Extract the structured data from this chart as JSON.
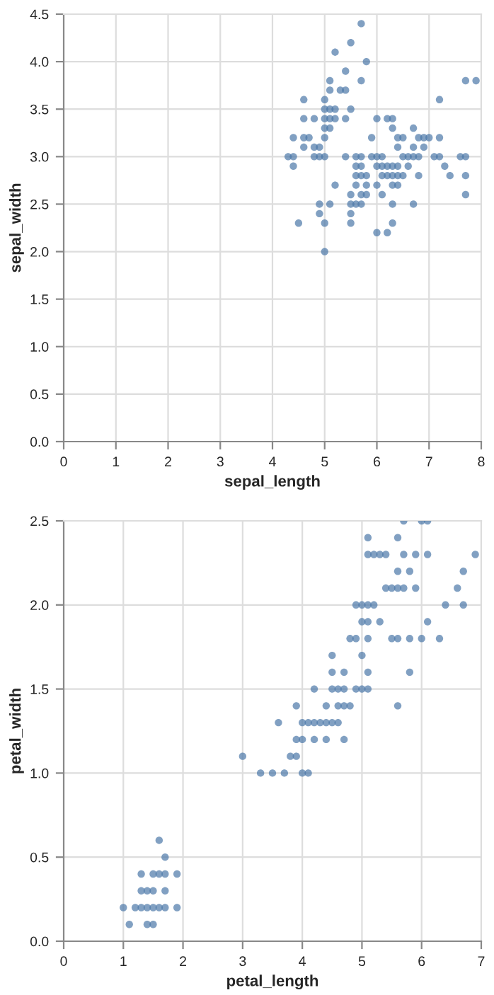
{
  "chart_data": [
    {
      "type": "scatter",
      "xlabel": "sepal_length",
      "ylabel": "sepal_width",
      "color": "#4c78a8",
      "marker": "circle",
      "grid": true,
      "xlim": [
        0,
        8
      ],
      "xticks": [
        0,
        1,
        2,
        3,
        4,
        5,
        6,
        7,
        8
      ],
      "ylim": [
        0,
        4.5
      ],
      "yticks": [
        {
          "value": 0,
          "label": "0.0"
        },
        {
          "value": 0.5,
          "label": "0.5"
        },
        {
          "value": 1,
          "label": "1.0"
        },
        {
          "value": 1.5,
          "label": "1.5"
        },
        {
          "value": 2,
          "label": "2.0"
        },
        {
          "value": 2.5,
          "label": "2.5"
        },
        {
          "value": 3,
          "label": "3.0"
        },
        {
          "value": 3.5,
          "label": "3.5"
        },
        {
          "value": 4,
          "label": "4.0"
        },
        {
          "value": 4.5,
          "label": "4.5"
        }
      ],
      "x": [
        5.1,
        4.9,
        4.7,
        4.6,
        5.0,
        5.4,
        4.6,
        5.0,
        4.4,
        4.9,
        5.4,
        4.8,
        4.8,
        4.3,
        5.8,
        5.7,
        5.7,
        5.1,
        5.4,
        5.1,
        4.6,
        5.1,
        5.0,
        5.2,
        5.2,
        4.8,
        5.2,
        5.5,
        5.0,
        5.5,
        4.4,
        5.1,
        5.0,
        4.5,
        4.4,
        4.6,
        5.3,
        5.0,
        7.0,
        6.4,
        6.9,
        5.5,
        6.5,
        5.7,
        6.3,
        4.9,
        6.6,
        5.2,
        5.0,
        5.9,
        6.0,
        6.1,
        5.6,
        6.7,
        5.6,
        5.8,
        6.2,
        5.6,
        5.9,
        6.1,
        6.3,
        6.4,
        6.6,
        6.8,
        6.7,
        6.0,
        5.7,
        5.5,
        6.0,
        5.4,
        6.0,
        6.3,
        5.5,
        5.5,
        6.1,
        5.8,
        5.0,
        5.6,
        5.7,
        5.7,
        6.2,
        5.1,
        7.1,
        6.3,
        6.5,
        7.6,
        4.9,
        7.3,
        6.7,
        7.2,
        6.5,
        6.4,
        6.8,
        5.7,
        5.8,
        7.7,
        7.7,
        6.9,
        5.6,
        7.7,
        6.3,
        6.7,
        7.2,
        6.2,
        6.4,
        7.2,
        7.4,
        7.9,
        6.3,
        6.1,
        7.7,
        6.3,
        6.4,
        6.0,
        6.8,
        6.2
      ],
      "values": [
        3.5,
        3.0,
        3.2,
        3.1,
        3.6,
        3.9,
        3.4,
        3.4,
        2.9,
        3.1,
        3.7,
        3.4,
        3.0,
        3.0,
        4.0,
        4.4,
        3.8,
        3.8,
        3.4,
        3.7,
        3.6,
        3.3,
        3.0,
        3.5,
        3.4,
        3.1,
        4.1,
        4.2,
        3.2,
        3.5,
        3.0,
        3.4,
        3.5,
        2.3,
        3.2,
        3.2,
        3.7,
        3.3,
        3.2,
        3.2,
        3.1,
        2.3,
        2.8,
        2.8,
        3.3,
        2.4,
        2.9,
        2.7,
        2.0,
        3.0,
        2.2,
        2.9,
        2.9,
        3.1,
        3.0,
        2.7,
        2.2,
        2.5,
        3.2,
        2.8,
        2.5,
        2.9,
        3.0,
        2.8,
        3.0,
        2.9,
        2.6,
        2.4,
        2.7,
        3.0,
        3.4,
        2.3,
        2.5,
        2.6,
        3.0,
        2.6,
        2.3,
        2.7,
        3.0,
        2.9,
        2.9,
        2.5,
        3.0,
        2.9,
        3.0,
        3.0,
        2.5,
        2.9,
        2.5,
        3.6,
        3.2,
        2.7,
        3.0,
        2.5,
        2.8,
        3.8,
        2.6,
        3.2,
        2.8,
        2.8,
        2.7,
        3.3,
        3.2,
        2.8,
        2.8,
        3.0,
        2.8,
        3.8,
        2.8,
        2.6,
        3.0,
        3.4,
        3.1,
        3.0,
        3.2,
        3.4
      ]
    },
    {
      "type": "scatter",
      "xlabel": "petal_length",
      "ylabel": "petal_width",
      "color": "#4c78a8",
      "marker": "circle",
      "grid": true,
      "xlim": [
        0,
        7
      ],
      "xticks": [
        0,
        1,
        2,
        3,
        4,
        5,
        6,
        7
      ],
      "ylim": [
        0,
        2.5
      ],
      "yticks": [
        {
          "value": 0,
          "label": "0.0"
        },
        {
          "value": 0.5,
          "label": "0.5"
        },
        {
          "value": 1,
          "label": "1.0"
        },
        {
          "value": 1.5,
          "label": "1.5"
        },
        {
          "value": 2,
          "label": "2.0"
        },
        {
          "value": 2.5,
          "label": "2.5"
        }
      ],
      "x": [
        1.4,
        1.3,
        1.5,
        1.7,
        1.4,
        1.5,
        1.6,
        1.4,
        1.1,
        1.2,
        1.5,
        1.3,
        1.7,
        1.5,
        1.7,
        1.0,
        1.7,
        1.9,
        1.6,
        1.3,
        1.6,
        1.9,
        4.7,
        4.5,
        4.9,
        4.0,
        4.6,
        4.5,
        4.7,
        3.3,
        4.6,
        3.9,
        3.5,
        4.2,
        4.0,
        3.6,
        4.4,
        4.1,
        3.9,
        4.8,
        4.7,
        4.3,
        4.8,
        5.0,
        3.8,
        3.7,
        3.9,
        5.1,
        4.5,
        4.7,
        4.4,
        4.1,
        4.4,
        4.6,
        4.0,
        4.2,
        4.2,
        3.0,
        6.0,
        5.1,
        5.9,
        5.6,
        5.8,
        6.6,
        4.5,
        6.3,
        5.8,
        6.1,
        5.1,
        5.3,
        5.5,
        5.0,
        5.1,
        5.3,
        5.5,
        6.7,
        6.9,
        5.0,
        5.7,
        4.9,
        6.7,
        4.9,
        5.7,
        6.0,
        5.6,
        5.8,
        6.1,
        6.4,
        5.6,
        5.1,
        5.6,
        6.1,
        5.6,
        5.4,
        5.1,
        5.9,
        5.7,
        5.2,
        5.0,
        5.2,
        5.4,
        5.1
      ],
      "values": [
        0.2,
        0.2,
        0.2,
        0.4,
        0.3,
        0.1,
        0.2,
        0.1,
        0.1,
        0.2,
        0.4,
        0.4,
        0.3,
        0.3,
        0.2,
        0.2,
        0.5,
        0.2,
        0.4,
        0.3,
        0.6,
        0.4,
        1.4,
        1.5,
        1.5,
        1.3,
        1.5,
        1.3,
        1.6,
        1.0,
        1.3,
        1.4,
        1.0,
        1.5,
        1.0,
        1.3,
        1.4,
        1.0,
        1.1,
        1.8,
        1.2,
        1.3,
        1.4,
        1.7,
        1.1,
        1.0,
        1.2,
        1.6,
        1.6,
        1.5,
        1.3,
        1.3,
        1.2,
        1.4,
        1.2,
        1.3,
        1.2,
        1.1,
        2.5,
        1.9,
        2.1,
        1.8,
        2.2,
        2.1,
        1.7,
        1.8,
        1.8,
        2.5,
        2.0,
        1.9,
        2.1,
        2.0,
        2.4,
        2.3,
        1.8,
        2.2,
        2.3,
        1.5,
        2.3,
        2.0,
        2.0,
        1.8,
        2.1,
        1.8,
        2.1,
        1.6,
        1.9,
        2.0,
        2.2,
        1.5,
        1.4,
        2.3,
        2.4,
        2.1,
        2.3,
        2.3,
        2.5,
        2.3,
        1.9,
        2.0,
        2.3,
        1.8
      ]
    }
  ]
}
